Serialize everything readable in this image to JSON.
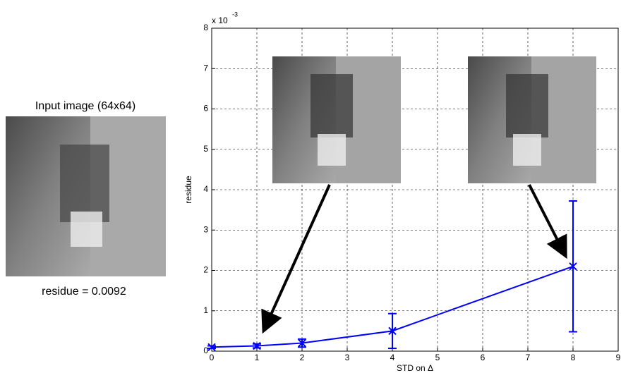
{
  "left_panel": {
    "title": "Input image (64x64)",
    "caption": "residue = 0.0092"
  },
  "chart_data": {
    "type": "errorbar-line",
    "x_label": "STD on Δ",
    "y_label": "residue",
    "y_multiplier": {
      "base": "x 10",
      "exponent": "-3"
    },
    "x": [
      0,
      1,
      2,
      4,
      8
    ],
    "series": [
      {
        "color": "#0000ff",
        "values": [
          0.1,
          0.13,
          0.2,
          0.5,
          2.1
        ],
        "errors": [
          0.03,
          0.05,
          0.1,
          0.43,
          1.62
        ]
      }
    ],
    "xlim": [
      0,
      9
    ],
    "xticks": [
      0,
      1,
      2,
      3,
      4,
      5,
      6,
      7,
      8,
      9
    ],
    "ylim": [
      0,
      8
    ],
    "yticks": [
      0,
      1,
      2,
      3,
      4,
      5,
      6,
      7,
      8
    ],
    "grid": true
  }
}
